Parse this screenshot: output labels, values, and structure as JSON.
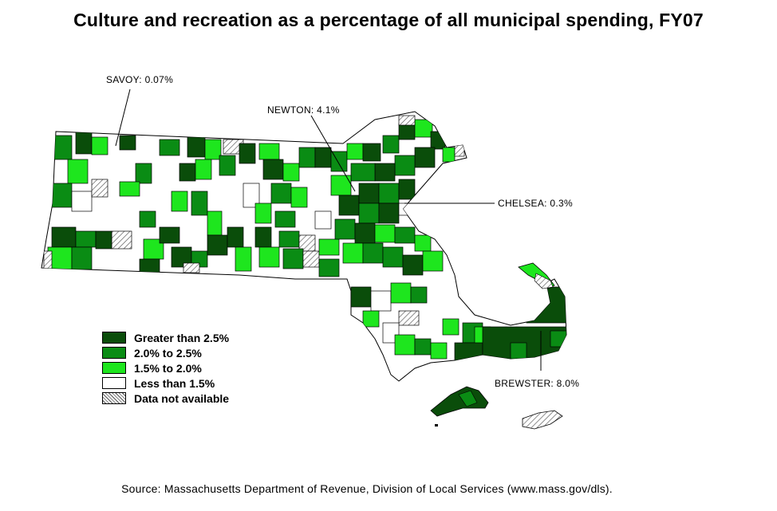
{
  "title": "Culture and recreation as a percentage of all municipal spending, FY07",
  "callouts": {
    "savoy": "SAVOY: 0.07%",
    "newton": "NEWTON: 4.1%",
    "chelsea": "CHELSEA: 0.3%",
    "brewster": "BREWSTER: 8.0%"
  },
  "legend": [
    {
      "label": "Greater than 2.5%",
      "color": "#0a4d0a"
    },
    {
      "label": "2.0% to 2.5%",
      "color": "#0a8c14"
    },
    {
      "label": "1.5% to 2.0%",
      "color": "#1ee61e"
    },
    {
      "label": "Less than 1.5%",
      "color": "#ffffff"
    },
    {
      "label": "Data not available",
      "color": "hatch"
    }
  ],
  "source": "Source: Massachusetts Department of Revenue, Division of Local Services (www.mass.gov/dls)."
}
